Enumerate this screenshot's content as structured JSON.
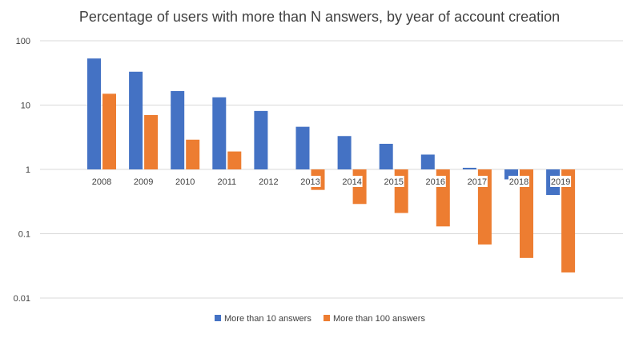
{
  "chart_data": {
    "type": "bar",
    "title": "Percentage of users with more than N answers, by year of account creation",
    "xlabel": "",
    "ylabel": "",
    "y_scale": "log",
    "y_axis_crosses_at": 1,
    "ylim": [
      0.01,
      100
    ],
    "y_ticks": [
      "100",
      "10",
      "1",
      "0.1",
      "0.01"
    ],
    "y_tick_values": [
      100,
      10,
      1,
      0.1,
      0.01
    ],
    "grid": true,
    "legend_position": "bottom",
    "categories": [
      "2008",
      "2009",
      "2010",
      "2011",
      "2012",
      "2013",
      "2014",
      "2015",
      "2016",
      "2017",
      "2018",
      "2019"
    ],
    "series": [
      {
        "name": "More than 10 answers",
        "color": "#4472c4",
        "values": [
          53,
          33,
          16.5,
          13.2,
          8.1,
          4.6,
          3.3,
          2.5,
          1.7,
          1.06,
          0.7,
          0.4
        ]
      },
      {
        "name": "More than 100 answers",
        "color": "#ed7d31",
        "values": [
          15,
          7,
          2.9,
          1.9,
          null,
          0.48,
          0.29,
          0.21,
          0.13,
          0.068,
          0.042,
          0.025
        ]
      }
    ]
  }
}
